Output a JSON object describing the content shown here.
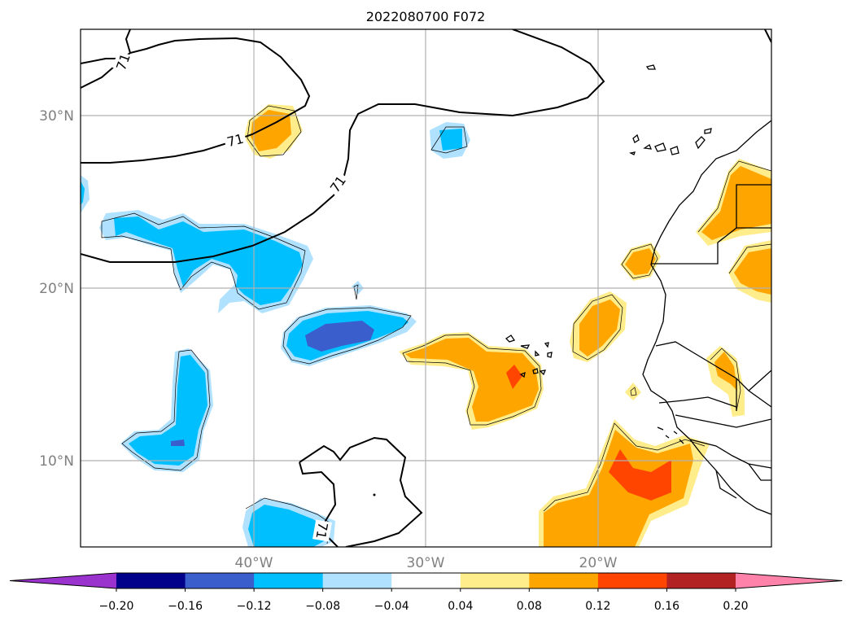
{
  "title": "2022080700 F072",
  "lat_labels": [
    {
      "value": 30,
      "text": "30°N"
    },
    {
      "value": 20,
      "text": "20°N"
    },
    {
      "value": 10,
      "text": "10°N"
    }
  ],
  "lon_labels": [
    {
      "value": -40,
      "text": "40°W"
    },
    {
      "value": -30,
      "text": "30°W"
    },
    {
      "value": -20,
      "text": "20°W"
    }
  ],
  "map_extent": {
    "lon_min": -50,
    "lon_max": -10,
    "lat_min": 5,
    "lat_max": 35
  },
  "contour_labels": [
    "71",
    "71",
    "71",
    "71"
  ],
  "colorbar": {
    "extend": "both",
    "ticks": [
      "−0.20",
      "−0.16",
      "−0.12",
      "−0.08",
      "−0.04",
      "0.04",
      "0.08",
      "0.12",
      "0.16",
      "0.20"
    ],
    "colors": [
      "#9a32cd",
      "#00008b",
      "#3a5fcd",
      "#00bfff",
      "#b0e2ff",
      "#ffffff",
      "#ffec8b",
      "#ffa500",
      "#ff4500",
      "#b22222",
      "#ff82ab"
    ]
  },
  "colors": {
    "light_blue": "#b0e2ff",
    "blue": "#00bfff",
    "royal_blue": "#3a5fcd",
    "light_yellow": "#ffec8b",
    "orange": "#ffa500",
    "red_orange": "#ff4500",
    "grid": "#b0b0b0"
  }
}
